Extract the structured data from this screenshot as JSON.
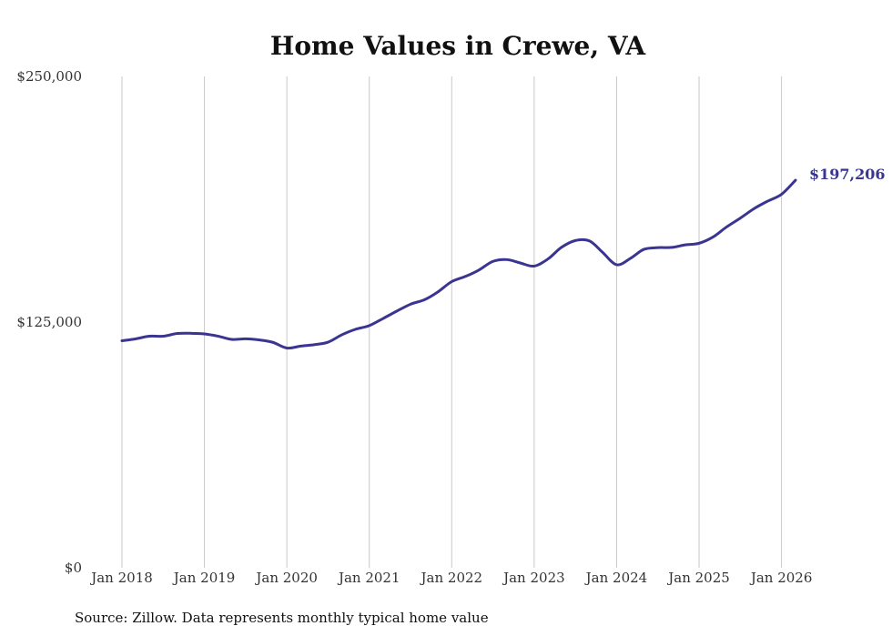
{
  "chart_data": {
    "type": "line",
    "title": "Home Values in Crewe, VA",
    "source": "Source: Zillow. Data represents monthly typical home value",
    "xlabel": "",
    "ylabel": "",
    "ylim": [
      0,
      250000
    ],
    "y_ticks": [
      {
        "value": 0,
        "label": "$0"
      },
      {
        "value": 125000,
        "label": "$125,000"
      },
      {
        "value": 250000,
        "label": "$250,000"
      }
    ],
    "x_ticks": [
      {
        "value": 2018.0,
        "label": "Jan 2018"
      },
      {
        "value": 2019.0,
        "label": "Jan 2019"
      },
      {
        "value": 2020.0,
        "label": "Jan 2020"
      },
      {
        "value": 2021.0,
        "label": "Jan 2021"
      },
      {
        "value": 2022.0,
        "label": "Jan 2022"
      },
      {
        "value": 2023.0,
        "label": "Jan 2023"
      },
      {
        "value": 2024.0,
        "label": "Jan 2024"
      },
      {
        "value": 2025.0,
        "label": "Jan 2025"
      },
      {
        "value": 2026.0,
        "label": "Jan 2026"
      }
    ],
    "xlim": [
      2018.0,
      2026.17
    ],
    "grid": "vertical",
    "line_color": "#3a3591",
    "end_label": "$197,206",
    "series": [
      {
        "x": [
          2018.0,
          2018.17,
          2018.33,
          2018.5,
          2018.67,
          2018.83,
          2019.0,
          2019.17,
          2019.33,
          2019.5,
          2019.67,
          2019.83,
          2020.0,
          2020.17,
          2020.33,
          2020.5,
          2020.67,
          2020.83,
          2021.0,
          2021.17,
          2021.33,
          2021.5,
          2021.67,
          2021.83,
          2022.0,
          2022.17,
          2022.33,
          2022.5,
          2022.67,
          2022.83,
          2023.0,
          2023.17,
          2023.33,
          2023.5,
          2023.67,
          2023.83,
          2024.0,
          2024.17,
          2024.33,
          2024.5,
          2024.67,
          2024.83,
          2025.0,
          2025.17,
          2025.33,
          2025.5,
          2025.67,
          2025.83,
          2026.0,
          2026.17
        ],
        "values": [
          115500,
          116500,
          117800,
          117800,
          119200,
          119300,
          119000,
          117800,
          116200,
          116500,
          115900,
          114700,
          111800,
          112800,
          113500,
          114800,
          118600,
          121300,
          123200,
          126900,
          130500,
          134100,
          136400,
          140300,
          145600,
          148300,
          151500,
          155900,
          156800,
          155100,
          153500,
          157200,
          163000,
          166500,
          166300,
          160500,
          154200,
          157500,
          162000,
          162900,
          163000,
          164300,
          165100,
          168300,
          173300,
          177900,
          182800,
          186500,
          190000,
          197206
        ]
      }
    ]
  }
}
